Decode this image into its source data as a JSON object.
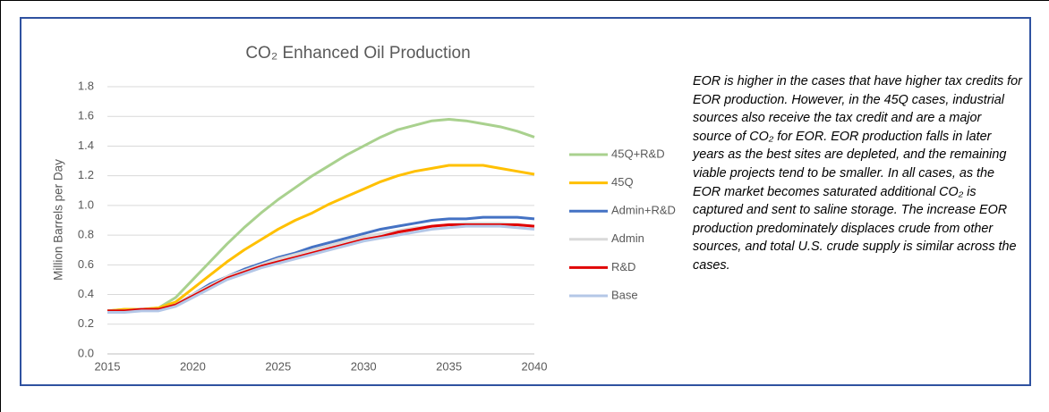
{
  "chart_data": {
    "type": "line",
    "title": "CO₂ Enhanced Oil Production",
    "ylabel": "Million Barrels per Day",
    "x": [
      2015,
      2016,
      2017,
      2018,
      2019,
      2020,
      2021,
      2022,
      2023,
      2024,
      2025,
      2026,
      2027,
      2028,
      2029,
      2030,
      2031,
      2032,
      2033,
      2034,
      2035,
      2036,
      2037,
      2038,
      2039,
      2040
    ],
    "series": [
      {
        "name": "45Q+R&D",
        "color": "#a9d18e",
        "values": [
          0.29,
          0.3,
          0.3,
          0.31,
          0.38,
          0.5,
          0.62,
          0.74,
          0.85,
          0.95,
          1.04,
          1.12,
          1.2,
          1.27,
          1.34,
          1.4,
          1.46,
          1.51,
          1.54,
          1.57,
          1.58,
          1.57,
          1.55,
          1.53,
          1.5,
          1.46
        ]
      },
      {
        "name": "45Q",
        "color": "#ffc000",
        "values": [
          0.29,
          0.3,
          0.3,
          0.31,
          0.35,
          0.44,
          0.53,
          0.62,
          0.7,
          0.77,
          0.84,
          0.9,
          0.95,
          1.01,
          1.06,
          1.11,
          1.16,
          1.2,
          1.23,
          1.25,
          1.27,
          1.27,
          1.27,
          1.25,
          1.23,
          1.21
        ]
      },
      {
        "name": "Admin+R&D",
        "color": "#4472c4",
        "values": [
          0.29,
          0.29,
          0.3,
          0.3,
          0.33,
          0.4,
          0.47,
          0.52,
          0.57,
          0.61,
          0.65,
          0.68,
          0.72,
          0.75,
          0.78,
          0.81,
          0.84,
          0.86,
          0.88,
          0.9,
          0.91,
          0.91,
          0.92,
          0.92,
          0.92,
          0.91
        ]
      },
      {
        "name": "Admin",
        "color": "#d9d9d9",
        "values": [
          0.29,
          0.29,
          0.3,
          0.3,
          0.33,
          0.4,
          0.46,
          0.52,
          0.56,
          0.6,
          0.64,
          0.67,
          0.7,
          0.73,
          0.76,
          0.79,
          0.81,
          0.83,
          0.85,
          0.86,
          0.87,
          0.88,
          0.88,
          0.88,
          0.87,
          0.86
        ]
      },
      {
        "name": "R&D",
        "color": "#e00000",
        "values": [
          0.29,
          0.29,
          0.3,
          0.3,
          0.33,
          0.39,
          0.45,
          0.51,
          0.55,
          0.59,
          0.62,
          0.65,
          0.68,
          0.71,
          0.74,
          0.77,
          0.79,
          0.82,
          0.84,
          0.86,
          0.87,
          0.87,
          0.87,
          0.87,
          0.87,
          0.86
        ]
      },
      {
        "name": "Base",
        "color": "#b4c7e7",
        "values": [
          0.28,
          0.28,
          0.29,
          0.29,
          0.32,
          0.38,
          0.44,
          0.5,
          0.54,
          0.58,
          0.61,
          0.64,
          0.67,
          0.7,
          0.73,
          0.76,
          0.78,
          0.8,
          0.82,
          0.84,
          0.85,
          0.86,
          0.86,
          0.86,
          0.85,
          0.84
        ]
      }
    ],
    "xlim": [
      2015,
      2040
    ],
    "xticks": [
      2015,
      2020,
      2025,
      2030,
      2035,
      2040
    ],
    "ylim": [
      0,
      1.8
    ],
    "yticks": [
      {
        "value": 0,
        "label": "0.0"
      },
      {
        "value": 0.2,
        "label": "0.2"
      },
      {
        "value": 0.4,
        "label": "0.4"
      },
      {
        "value": 0.6,
        "label": "0.6"
      },
      {
        "value": 0.8,
        "label": "0.8"
      },
      {
        "value": 1,
        "label": "1.0"
      },
      {
        "value": 1.2,
        "label": "1.2"
      },
      {
        "value": 1.4,
        "label": "1.4"
      },
      {
        "value": 1.6,
        "label": "1.6"
      },
      {
        "value": 1.8,
        "label": "1.8"
      }
    ],
    "grid": true,
    "legend": "right"
  },
  "annotation": "EOR is higher in the cases that have higher tax credits for EOR production. However, in the 45Q cases, industrial sources also receive the tax credit and are a major source of CO₂ for EOR. EOR production falls in later years as the best sites are depleted, and the remaining viable projects tend to be smaller. In all cases, as the EOR market becomes saturated additional CO₂ is captured and sent to saline storage. The increase EOR production predominately displaces crude from other sources, and total U.S. crude supply is similar across the cases."
}
